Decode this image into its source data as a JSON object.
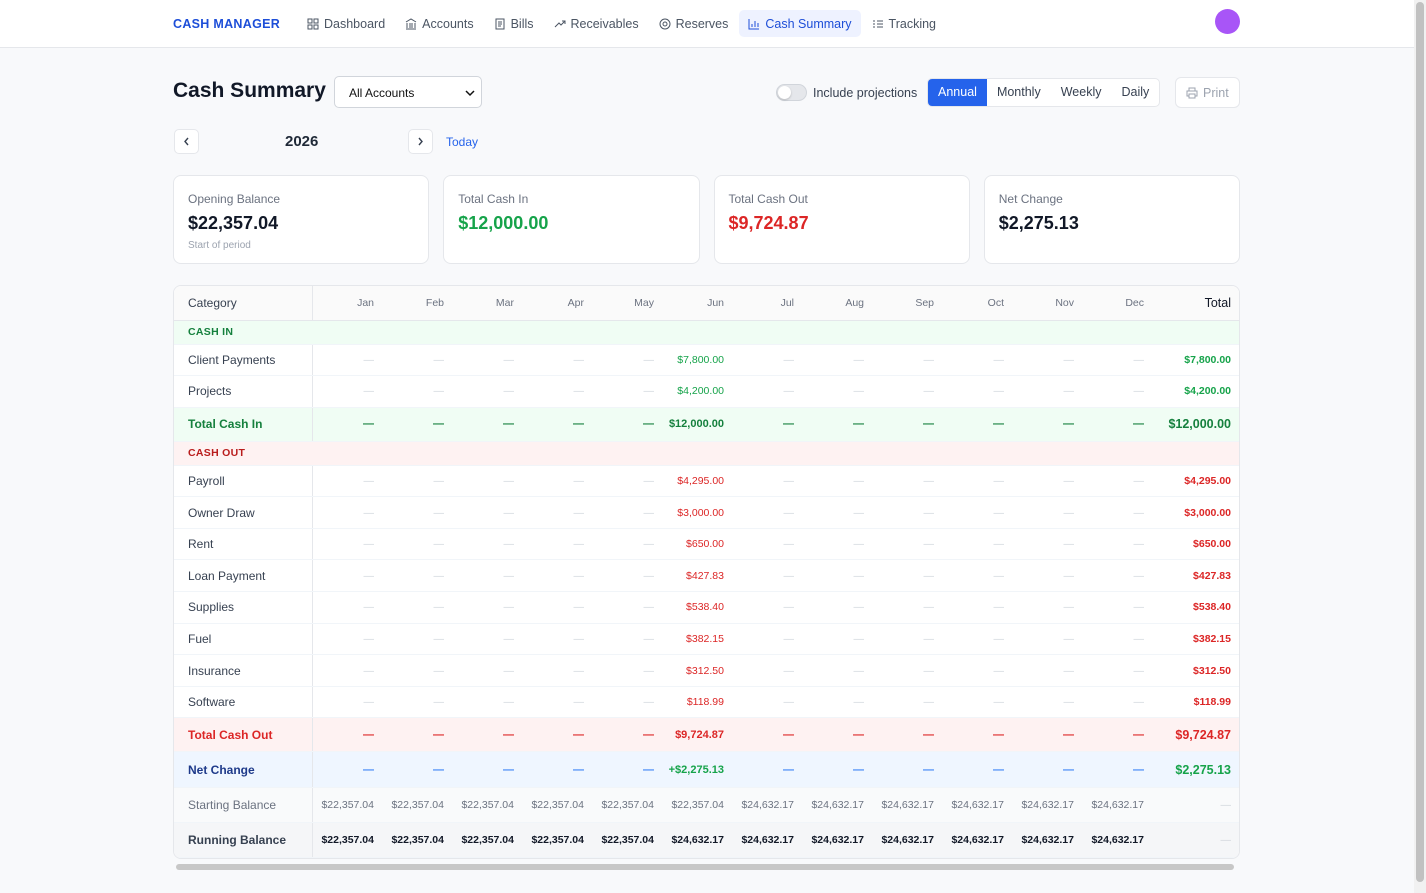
{
  "nav": {
    "brand": "CASH MANAGER",
    "items": [
      "Dashboard",
      "Accounts",
      "Bills",
      "Receivables",
      "Reserves",
      "Cash Summary",
      "Tracking"
    ]
  },
  "header": {
    "title": "Cash Summary",
    "account_select": "All Accounts",
    "toggle_label": "Include projections",
    "periods": [
      "Annual",
      "Monthly",
      "Weekly",
      "Daily"
    ],
    "print": "Print",
    "year": "2026",
    "today": "Today"
  },
  "cards": [
    {
      "label": "Opening Balance",
      "value": "$22,357.04",
      "note": "Start of period"
    },
    {
      "label": "Total Cash In",
      "value": "$12,000.00"
    },
    {
      "label": "Total Cash Out",
      "value": "$9,724.87"
    },
    {
      "label": "Net Change",
      "value": "$2,275.13"
    }
  ],
  "table": {
    "columns": [
      "Category",
      "Jan",
      "Feb",
      "Mar",
      "Apr",
      "May",
      "Jun",
      "Jul",
      "Aug",
      "Sep",
      "Oct",
      "Nov",
      "Dec",
      "Total"
    ],
    "cash_in": {
      "label": "CASH IN",
      "rows": [
        [
          "Client Payments",
          "—",
          "—",
          "—",
          "—",
          "—",
          "$7,800.00",
          "—",
          "—",
          "—",
          "—",
          "—",
          "—",
          "$7,800.00"
        ],
        [
          "Projects",
          "—",
          "—",
          "—",
          "—",
          "—",
          "$4,200.00",
          "—",
          "—",
          "—",
          "—",
          "—",
          "—",
          "$4,200.00"
        ]
      ],
      "total": [
        "Total Cash In",
        "—",
        "—",
        "—",
        "—",
        "—",
        "$12,000.00",
        "—",
        "—",
        "—",
        "—",
        "—",
        "—",
        "$12,000.00"
      ]
    },
    "cash_out": {
      "label": "CASH OUT",
      "rows": [
        [
          "Payroll",
          "—",
          "—",
          "—",
          "—",
          "—",
          "$4,295.00",
          "—",
          "—",
          "—",
          "—",
          "—",
          "—",
          "$4,295.00"
        ],
        [
          "Owner Draw",
          "—",
          "—",
          "—",
          "—",
          "—",
          "$3,000.00",
          "—",
          "—",
          "—",
          "—",
          "—",
          "—",
          "$3,000.00"
        ],
        [
          "Rent",
          "—",
          "—",
          "—",
          "—",
          "—",
          "$650.00",
          "—",
          "—",
          "—",
          "—",
          "—",
          "—",
          "$650.00"
        ],
        [
          "Loan Payment",
          "—",
          "—",
          "—",
          "—",
          "—",
          "$427.83",
          "—",
          "—",
          "—",
          "—",
          "—",
          "—",
          "$427.83"
        ],
        [
          "Supplies",
          "—",
          "—",
          "—",
          "—",
          "—",
          "$538.40",
          "—",
          "—",
          "—",
          "—",
          "—",
          "—",
          "$538.40"
        ],
        [
          "Fuel",
          "—",
          "—",
          "—",
          "—",
          "—",
          "$382.15",
          "—",
          "—",
          "—",
          "—",
          "—",
          "—",
          "$382.15"
        ],
        [
          "Insurance",
          "—",
          "—",
          "—",
          "—",
          "—",
          "$312.50",
          "—",
          "—",
          "—",
          "—",
          "—",
          "—",
          "$312.50"
        ],
        [
          "Software",
          "—",
          "—",
          "—",
          "—",
          "—",
          "$118.99",
          "—",
          "—",
          "—",
          "—",
          "—",
          "—",
          "$118.99"
        ]
      ],
      "total": [
        "Total Cash Out",
        "—",
        "—",
        "—",
        "—",
        "—",
        "$9,724.87",
        "—",
        "—",
        "—",
        "—",
        "—",
        "—",
        "$9,724.87"
      ]
    },
    "net_change": [
      "Net Change",
      "—",
      "—",
      "—",
      "—",
      "—",
      "+$2,275.13",
      "—",
      "—",
      "—",
      "—",
      "—",
      "—",
      "$2,275.13"
    ],
    "starting_balance": [
      "Starting Balance",
      "$22,357.04",
      "$22,357.04",
      "$22,357.04",
      "$22,357.04",
      "$22,357.04",
      "$22,357.04",
      "$24,632.17",
      "$24,632.17",
      "$24,632.17",
      "$24,632.17",
      "$24,632.17",
      "$24,632.17",
      "—"
    ],
    "running_balance": [
      "Running Balance",
      "$22,357.04",
      "$22,357.04",
      "$22,357.04",
      "$22,357.04",
      "$22,357.04",
      "$24,632.17",
      "$24,632.17",
      "$24,632.17",
      "$24,632.17",
      "$24,632.17",
      "$24,632.17",
      "$24,632.17",
      "—"
    ]
  }
}
